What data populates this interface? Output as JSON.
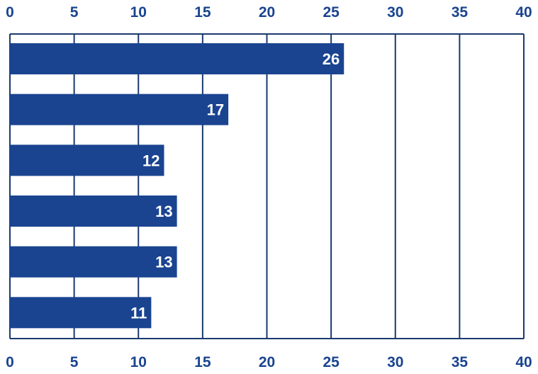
{
  "chart_data": {
    "type": "bar",
    "orientation": "horizontal",
    "categories": [
      "",
      "",
      "",
      "",
      "",
      ""
    ],
    "values": [
      26,
      17,
      12,
      13,
      13,
      11
    ],
    "data_labels": [
      "26",
      "17",
      "12",
      "13",
      "13",
      "11"
    ],
    "title": "",
    "xlabel": "",
    "ylabel": "",
    "xlim": [
      0,
      40
    ],
    "x_ticks": [
      "0",
      "5",
      "10",
      "15",
      "20",
      "25",
      "30",
      "35",
      "40"
    ],
    "x_tick_values": [
      0,
      5,
      10,
      15,
      20,
      25,
      30,
      35,
      40
    ],
    "tick_labels_on": [
      "top",
      "bottom"
    ],
    "grid": true,
    "legend": "none",
    "colors": {
      "bar": "#1a4490",
      "gridline": "#1a3a6e",
      "tick_text": "#1a4490",
      "bar_text": "#ffffff"
    }
  }
}
